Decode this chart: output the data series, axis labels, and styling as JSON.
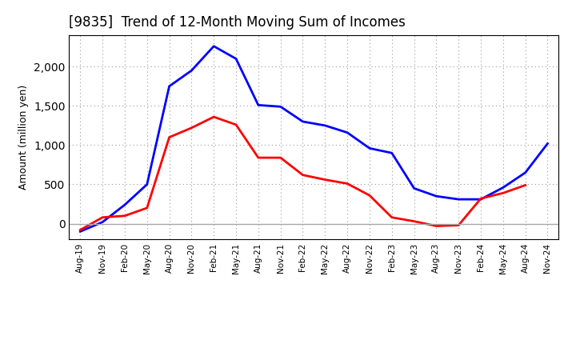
{
  "title": "[9835]  Trend of 12-Month Moving Sum of Incomes",
  "ylabel": "Amount (million yen)",
  "x_labels": [
    "Aug-19",
    "Nov-19",
    "Feb-20",
    "May-20",
    "Aug-20",
    "Nov-20",
    "Feb-21",
    "May-21",
    "Aug-21",
    "Nov-21",
    "Feb-22",
    "May-22",
    "Aug-22",
    "Nov-22",
    "Feb-23",
    "May-23",
    "Aug-23",
    "Nov-23",
    "Feb-24",
    "May-24",
    "Aug-24",
    "Nov-24"
  ],
  "ordinary_income": [
    -100,
    20,
    240,
    500,
    1750,
    1950,
    2260,
    2100,
    1510,
    1490,
    1300,
    1250,
    1160,
    960,
    900,
    450,
    350,
    310,
    310,
    460,
    650,
    1020
  ],
  "net_income": [
    -80,
    80,
    100,
    200,
    1100,
    1220,
    1360,
    1260,
    840,
    840,
    620,
    560,
    510,
    360,
    80,
    30,
    -30,
    -20,
    320,
    390,
    490,
    null
  ],
  "ordinary_color": "#0000ff",
  "net_color": "#ff0000",
  "ylim": [
    -200,
    2400
  ],
  "yticks": [
    0,
    500,
    1000,
    1500,
    2000
  ],
  "background_color": "#ffffff",
  "grid_color": "#999999"
}
